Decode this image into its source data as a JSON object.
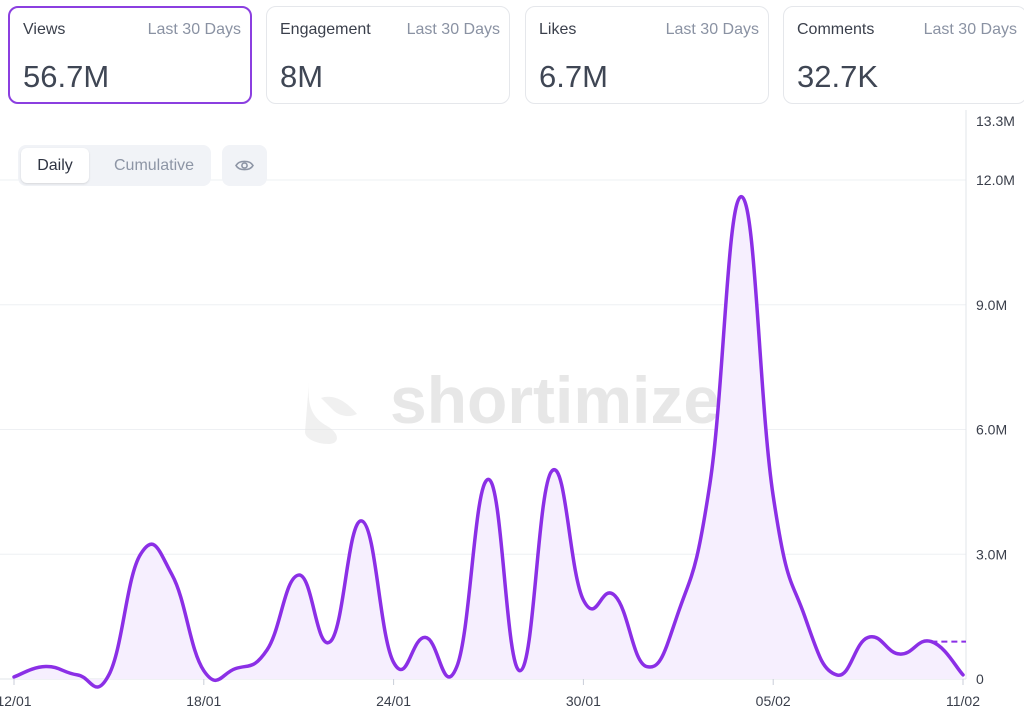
{
  "cards": [
    {
      "label": "Views",
      "period": "Last 30 Days",
      "value": "56.7M",
      "active": true
    },
    {
      "label": "Engagement",
      "period": "Last 30 Days",
      "value": "8M",
      "active": false
    },
    {
      "label": "Likes",
      "period": "Last 30 Days",
      "value": "6.7M",
      "active": false
    },
    {
      "label": "Comments",
      "period": "Last 30 Days",
      "value": "32.7K",
      "active": false
    }
  ],
  "toggle": {
    "daily": "Daily",
    "cumulative": "Cumulative",
    "selected": "Daily"
  },
  "eye_icon": "eye-icon",
  "watermark": "shortimize",
  "colors": {
    "accent": "#8b3fe0",
    "line": "#8b2fe6",
    "fill": "#f6effe",
    "grid": "#eceef2"
  },
  "chart_data": {
    "type": "line",
    "x": [
      "12/01",
      "13/01",
      "14/01",
      "15/01",
      "16/01",
      "17/01",
      "18/01",
      "19/01",
      "20/01",
      "21/01",
      "22/01",
      "23/01",
      "24/01",
      "25/01",
      "26/01",
      "27/01",
      "28/01",
      "29/01",
      "30/01",
      "31/01",
      "01/02",
      "02/02",
      "03/02",
      "04/02",
      "05/02",
      "06/02",
      "07/02",
      "08/02",
      "09/02",
      "10/02",
      "11/02"
    ],
    "series": [
      {
        "values": [
          0.05,
          0.3,
          0.1,
          0.1,
          3.0,
          2.5,
          0.2,
          0.25,
          0.7,
          2.5,
          0.9,
          3.8,
          0.4,
          1.0,
          0.3,
          4.8,
          0.2,
          5.0,
          1.9,
          2.0,
          0.3,
          1.6,
          4.7,
          11.6,
          4.4,
          1.5,
          0.1,
          1.0,
          0.6,
          0.9,
          0.1
        ]
      }
    ],
    "xtick_labels": [
      "12/01",
      "18/01",
      "24/01",
      "30/01",
      "05/02",
      "11/02"
    ],
    "ytick_labels": [
      "0",
      "3.0M",
      "6.0M",
      "9.0M",
      "12.0M",
      "13.3M"
    ],
    "ylim": [
      0,
      13.3
    ],
    "grid": true,
    "last_point_dashed_value": 0.9
  }
}
